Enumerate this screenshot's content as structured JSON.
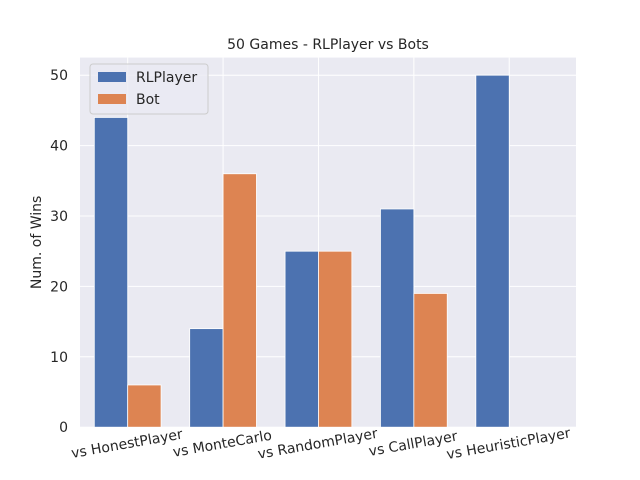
{
  "chart_data": {
    "type": "bar",
    "title": "50 Games - RLPlayer vs Bots",
    "xlabel": "",
    "ylabel": "Num. of Wins",
    "categories": [
      "vs HonestPlayer",
      "vs MonteCarlo",
      "vs RandomPlayer",
      "vs CallPlayer",
      "vs HeuristicPlayer"
    ],
    "series": [
      {
        "name": "RLPlayer",
        "color": "#4c72b0",
        "values": [
          44,
          14,
          25,
          31,
          50
        ]
      },
      {
        "name": "Bot",
        "color": "#dd8452",
        "values": [
          6,
          36,
          25,
          19,
          0
        ]
      }
    ],
    "ylim": [
      0,
      52.5
    ],
    "yticks": [
      0,
      10,
      20,
      30,
      40,
      50
    ],
    "xtick_rotation_deg": -10,
    "grid": true,
    "legend_position": "top-left",
    "background_color": "#eaeaf2"
  }
}
